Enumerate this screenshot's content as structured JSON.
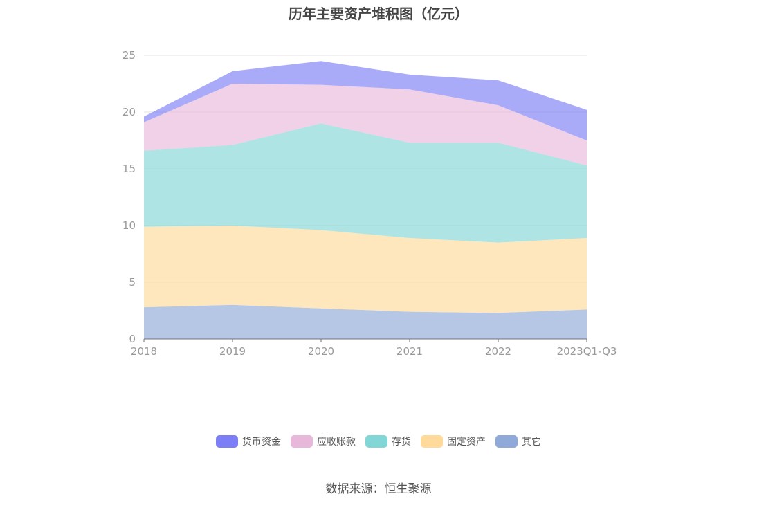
{
  "chart_data": {
    "type": "area",
    "title": "历年主要资产堆积图（亿元）",
    "categories": [
      "2018",
      "2019",
      "2020",
      "2021",
      "2022",
      "2023Q1-Q3"
    ],
    "ylim": [
      0,
      25
    ],
    "yticks": [
      0,
      5,
      10,
      15,
      20,
      25
    ],
    "stacked": true,
    "grid": true,
    "legend_position": "bottom",
    "series": [
      {
        "name": "其它",
        "color": "#8FA9D9",
        "values": [
          2.8,
          3.0,
          2.7,
          2.4,
          2.3,
          2.6
        ]
      },
      {
        "name": "固定资产",
        "color": "#FFDA9A",
        "values": [
          7.1,
          7.0,
          6.9,
          6.5,
          6.2,
          6.3
        ]
      },
      {
        "name": "存货",
        "color": "#82D6D6",
        "values": [
          6.7,
          7.1,
          9.4,
          8.4,
          8.8,
          6.4
        ]
      },
      {
        "name": "应收账款",
        "color": "#E8B8DA",
        "values": [
          2.5,
          5.4,
          3.4,
          4.7,
          3.3,
          2.2
        ]
      },
      {
        "name": "货币资金",
        "color": "#7B7EF4",
        "values": [
          0.5,
          1.1,
          2.1,
          1.3,
          2.2,
          2.7
        ]
      }
    ]
  },
  "legend": {
    "items": [
      {
        "label": "货币资金",
        "color": "#7B7EF4"
      },
      {
        "label": "应收账款",
        "color": "#E8B8DA"
      },
      {
        "label": "存货",
        "color": "#82D6D6"
      },
      {
        "label": "固定资产",
        "color": "#FFDA9A"
      },
      {
        "label": "其它",
        "color": "#8FA9D9"
      }
    ]
  },
  "source_text": "数据来源：恒生聚源"
}
